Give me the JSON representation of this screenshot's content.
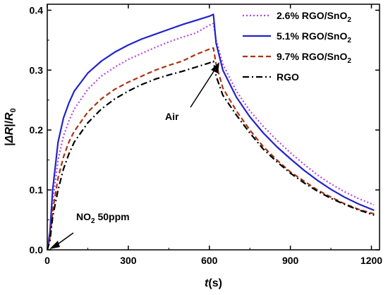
{
  "chart_data": {
    "type": "line",
    "title": "",
    "xlabel": {
      "italic": "t",
      "rest": "(s)"
    },
    "ylabel": {
      "parts": [
        "|",
        "Δ",
        "R",
        "|/",
        "R",
        "0"
      ]
    },
    "xlim": [
      0,
      1230
    ],
    "ylim": [
      0,
      0.41
    ],
    "xticks": [
      0,
      300,
      600,
      900,
      1200
    ],
    "yticks": [
      0.0,
      0.1,
      0.2,
      0.3,
      0.4
    ],
    "ytick_labels": [
      "0.0",
      "0.1",
      "0.2",
      "0.3",
      "0.4"
    ],
    "xtick_labels": [
      "0",
      "300",
      "600",
      "900",
      "1200"
    ],
    "grid": false,
    "legend_position": "top-right",
    "annotations": [
      {
        "text_main": "NO",
        "text_sub": "2",
        "text_rest": " 50ppm"
      },
      {
        "text_main": "Air"
      }
    ],
    "series": [
      {
        "name": {
          "main": "2.6% RGO/SnO",
          "sub": "2"
        },
        "color": "#bb44dd",
        "style": "dotted",
        "x": [
          0,
          10,
          20,
          40,
          60,
          80,
          100,
          150,
          200,
          250,
          300,
          350,
          400,
          450,
          500,
          550,
          600,
          615,
          625,
          650,
          700,
          750,
          800,
          850,
          900,
          950,
          1000,
          1050,
          1100,
          1150,
          1210
        ],
        "y": [
          0,
          0.02,
          0.08,
          0.15,
          0.19,
          0.215,
          0.235,
          0.268,
          0.29,
          0.305,
          0.318,
          0.328,
          0.338,
          0.347,
          0.355,
          0.362,
          0.375,
          0.378,
          0.35,
          0.31,
          0.265,
          0.232,
          0.206,
          0.183,
          0.162,
          0.143,
          0.125,
          0.11,
          0.097,
          0.086,
          0.075
        ]
      },
      {
        "name": {
          "main": "5.1% RGO/SnO",
          "sub": "2"
        },
        "color": "#2222cc",
        "style": "solid",
        "x": [
          0,
          10,
          20,
          40,
          60,
          80,
          100,
          150,
          200,
          250,
          300,
          350,
          400,
          450,
          500,
          550,
          600,
          615,
          625,
          650,
          700,
          750,
          800,
          850,
          900,
          950,
          1000,
          1050,
          1100,
          1150,
          1210
        ],
        "y": [
          0,
          0.03,
          0.1,
          0.18,
          0.22,
          0.245,
          0.265,
          0.295,
          0.315,
          0.33,
          0.342,
          0.352,
          0.36,
          0.368,
          0.376,
          0.383,
          0.39,
          0.393,
          0.345,
          0.3,
          0.255,
          0.222,
          0.195,
          0.172,
          0.152,
          0.133,
          0.116,
          0.101,
          0.088,
          0.077,
          0.066
        ]
      },
      {
        "name": {
          "main": "9.7% RGO/SnO",
          "sub": "2"
        },
        "color": "#aa3311",
        "style": "dashed",
        "x": [
          0,
          10,
          20,
          40,
          60,
          80,
          100,
          150,
          200,
          250,
          300,
          350,
          400,
          450,
          500,
          550,
          600,
          615,
          625,
          650,
          700,
          750,
          800,
          850,
          900,
          950,
          1000,
          1050,
          1100,
          1150,
          1210
        ],
        "y": [
          0,
          0.02,
          0.065,
          0.12,
          0.155,
          0.18,
          0.198,
          0.23,
          0.252,
          0.268,
          0.28,
          0.29,
          0.3,
          0.308,
          0.315,
          0.326,
          0.335,
          0.337,
          0.31,
          0.27,
          0.232,
          0.2,
          0.172,
          0.15,
          0.13,
          0.115,
          0.1,
          0.088,
          0.077,
          0.068,
          0.06
        ]
      },
      {
        "name": {
          "main": "RGO",
          "sub": ""
        },
        "color": "#000000",
        "style": "dashdot",
        "x": [
          0,
          10,
          20,
          40,
          60,
          80,
          100,
          150,
          200,
          250,
          300,
          350,
          400,
          450,
          500,
          550,
          600,
          615,
          625,
          650,
          700,
          750,
          800,
          850,
          900,
          950,
          1000,
          1050,
          1100,
          1150,
          1210
        ],
        "y": [
          0,
          0.015,
          0.055,
          0.1,
          0.135,
          0.16,
          0.18,
          0.212,
          0.235,
          0.252,
          0.265,
          0.276,
          0.285,
          0.292,
          0.298,
          0.305,
          0.312,
          0.315,
          0.29,
          0.258,
          0.225,
          0.195,
          0.168,
          0.147,
          0.128,
          0.112,
          0.098,
          0.086,
          0.076,
          0.067,
          0.058
        ]
      }
    ]
  }
}
